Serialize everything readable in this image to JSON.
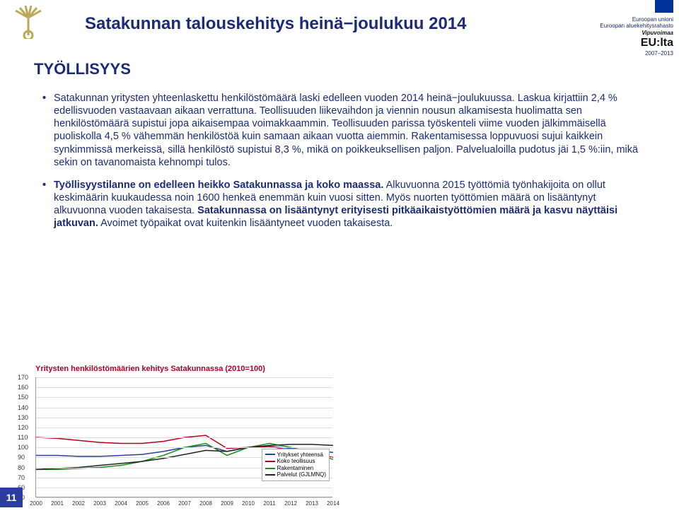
{
  "page_number": "11",
  "title": "Satakunnan talouskehitys heinä−joulukuu 2014",
  "subtitle": "TYÖLLISYYS",
  "logo_left": {
    "exists": true
  },
  "logo_right": {
    "line1": "Euroopan unioni",
    "line2": "Euroopan aluekehitysrahasto",
    "line3": "Vipuvoimaa",
    "line4": "EU:lta",
    "line5": "2007–2013"
  },
  "bullets": [
    {
      "text": "Satakunnan yritysten yhteenlaskettu henkilöstömäärä laski edelleen vuoden 2014 heinä−joulukuussa. Laskua kirjattiin 2,4 % edellisvuoden vastaavaan aikaan verrattuna. Teollisuuden liikevaihdon ja viennin nousun alkamisesta huolimatta sen henkilöstömäärä supistui jopa aikaisempaa voimakkaammin. Teollisuuden parissa työskenteli viime vuoden jälkimmäisellä puoliskolla 4,5 % vähemmän henkilöstöä kuin samaan aikaan vuotta aiemmin. Rakentamisessa loppuvuosi sujui kaikkein synkimmissä merkeissä, sillä henkilöstö supistui 8,3 %, mikä on poikkeuksellisen paljon. Palvelualoilla pudotus jäi 1,5 %:iin, mikä sekin on tavanomaista kehnompi tulos."
    },
    {
      "text_parts": [
        {
          "bold": true,
          "text": "Työllisyystilanne on edelleen heikko Satakunnassa ja koko maassa."
        },
        {
          "bold": false,
          "text": " Alkuvuonna 2015 työttömiä työnhakijoita on ollut keskimäärin kuukaudessa noin 1600 henkeä enemmän kuin vuosi sitten. Myös nuorten työttömien määrä on lisääntynyt alkuvuonna vuoden takaisesta. "
        },
        {
          "bold": true,
          "text": "Satakunnassa on lisääntynyt erityisesti pitkäaikaistyöttömien määrä ja kasvu näyttäisi jatkuvan."
        },
        {
          "bold": false,
          "text": " Avoimet työpaikat ovat kuitenkin lisääntyneet vuoden takaisesta."
        }
      ]
    }
  ],
  "chart": {
    "title": "Yritysten henkilöstömäärien kehitys Satakunnassa (2010=100)",
    "type": "line",
    "ylim": [
      50,
      170
    ],
    "ytick_step": 10,
    "xticks": [
      "2000",
      "2001",
      "2002",
      "2003",
      "2004",
      "2005",
      "2006",
      "2007",
      "2008",
      "2009",
      "2010",
      "2011",
      "2012",
      "2013",
      "2014"
    ],
    "grid_color": "#dddddd",
    "axis_color": "#999999",
    "background_color": "#ffffff",
    "title_color": "#b00020",
    "title_fontsize": 11,
    "tick_fontsize": 9,
    "series": [
      {
        "name": "Yritykset yhteensä",
        "color": "#2b3d9e",
        "values": [
          92,
          92,
          91,
          91,
          92,
          93,
          96,
          100,
          102,
          96,
          100,
          101,
          99,
          97,
          95
        ]
      },
      {
        "name": "Koko teollisuus",
        "color": "#b00020",
        "values": [
          110,
          109,
          107,
          105,
          104,
          104,
          106,
          110,
          112,
          99,
          100,
          101,
          97,
          94,
          90
        ]
      },
      {
        "name": "Rakentaminen",
        "color": "#1a8f1a",
        "values": [
          78,
          78,
          79,
          80,
          82,
          86,
          92,
          100,
          104,
          92,
          100,
          104,
          100,
          95,
          88
        ]
      },
      {
        "name": "Palvelut (GJLMNQ)",
        "color": "#222222",
        "values": [
          78,
          79,
          80,
          82,
          84,
          86,
          89,
          93,
          97,
          96,
          100,
          102,
          103,
          103,
          102
        ]
      }
    ],
    "legend": {
      "position": "bottom-right",
      "border_color": "#aaaaaa",
      "fontsize": 8
    }
  },
  "colors": {
    "primary_text": "#1c2a7a",
    "page_badge_bg": "#2b3d9e",
    "page_badge_fg": "#ffffff"
  }
}
